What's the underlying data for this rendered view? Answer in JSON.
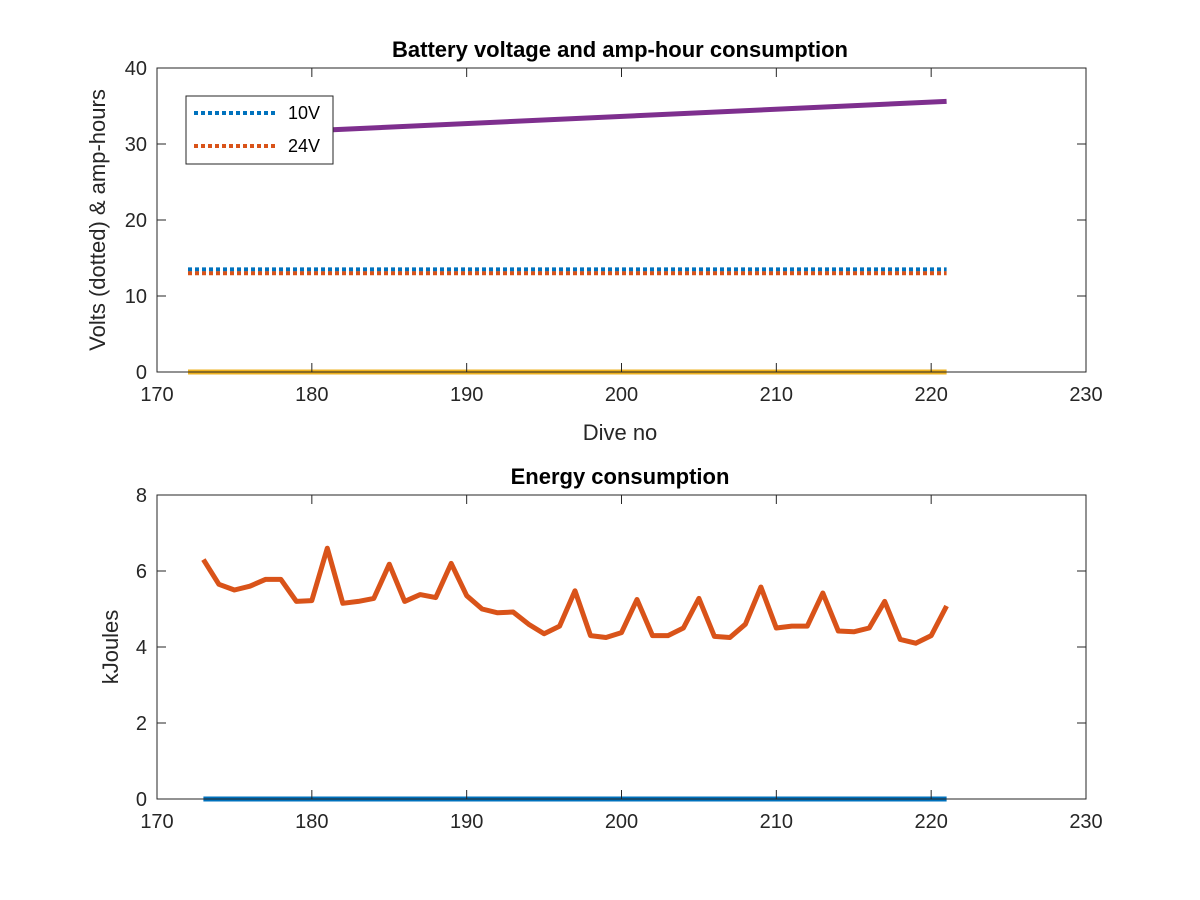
{
  "chart_data": [
    {
      "type": "line",
      "title": "Battery voltage and amp-hour consumption",
      "xlabel": "Dive no",
      "ylabel": "Volts (dotted) & amp-hours",
      "xlim": [
        170,
        230
      ],
      "ylim": [
        0,
        40
      ],
      "xticks": [
        "170",
        "180",
        "190",
        "200",
        "210",
        "220",
        "230"
      ],
      "yticks": [
        "0",
        "10",
        "20",
        "30",
        "40"
      ],
      "grid": false,
      "legend_position": "top-left",
      "series": [
        {
          "name": "10V",
          "style": "dotted",
          "color": "#0072BD",
          "x": [
            172,
            221
          ],
          "y": [
            13.5,
            13.5
          ],
          "in_legend": true
        },
        {
          "name": "24V",
          "style": "dotted",
          "color": "#D95319",
          "x": [
            172,
            221
          ],
          "y": [
            13.0,
            13.0
          ],
          "in_legend": true
        },
        {
          "style": "solid",
          "color": "#EDB120",
          "x": [
            172,
            221
          ],
          "y": [
            0,
            0
          ],
          "in_legend": false
        },
        {
          "style": "solid",
          "color": "#7E2F8E",
          "x": [
            172,
            221
          ],
          "y": [
            31.0,
            35.6
          ],
          "in_legend": false
        }
      ]
    },
    {
      "type": "line",
      "title": "Energy consumption",
      "xlabel": "",
      "ylabel": "kJoules",
      "xlim": [
        170,
        230
      ],
      "ylim": [
        0,
        8
      ],
      "xticks": [
        "170",
        "180",
        "190",
        "200",
        "210",
        "220",
        "230"
      ],
      "yticks": [
        "0",
        "2",
        "4",
        "6",
        "8"
      ],
      "grid": false,
      "series": [
        {
          "style": "solid",
          "color": "#0072BD",
          "x": [
            173,
            221
          ],
          "y": [
            0,
            0
          ]
        },
        {
          "style": "solid",
          "color": "#D95319",
          "x": [
            173,
            174,
            175,
            176,
            177,
            178,
            179,
            180,
            181,
            182,
            183,
            184,
            185,
            186,
            187,
            188,
            189,
            190,
            191,
            192,
            193,
            194,
            195,
            196,
            197,
            198,
            199,
            200,
            201,
            202,
            203,
            204,
            205,
            206,
            207,
            208,
            209,
            210,
            211,
            212,
            213,
            214,
            215,
            216,
            217,
            218,
            219,
            220,
            221
          ],
          "y": [
            6.3,
            5.65,
            5.5,
            5.6,
            5.78,
            5.78,
            5.2,
            5.22,
            6.6,
            5.15,
            5.2,
            5.28,
            6.18,
            5.2,
            5.38,
            5.3,
            6.2,
            5.35,
            5.0,
            4.9,
            4.92,
            4.6,
            4.35,
            4.55,
            5.48,
            4.3,
            4.25,
            4.38,
            5.25,
            4.3,
            4.3,
            4.5,
            5.28,
            4.28,
            4.25,
            4.6,
            5.58,
            4.5,
            4.55,
            4.55,
            5.42,
            4.42,
            4.4,
            4.5,
            5.2,
            4.2,
            4.1,
            4.3,
            5.08
          ]
        }
      ]
    }
  ]
}
